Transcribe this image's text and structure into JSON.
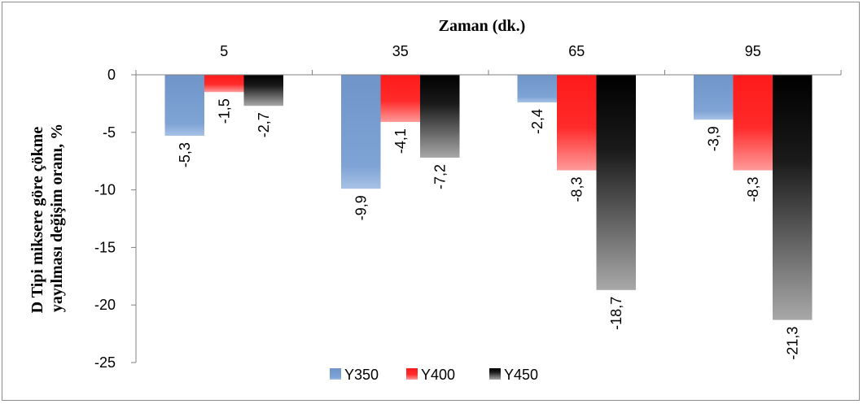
{
  "chart_data": {
    "type": "bar",
    "title": "",
    "xlabel": "Zaman (dk.)",
    "ylabel_lines": [
      "D Tipi miksere göre çökme",
      "yayılması değişim oranı, %"
    ],
    "categories": [
      "5",
      "35",
      "65",
      "95"
    ],
    "ylim": [
      -25,
      0
    ],
    "yticks": [
      "0",
      "-5",
      "-10",
      "-15",
      "-20",
      "-25"
    ],
    "ytick_values": [
      0,
      -5,
      -10,
      -15,
      -20,
      -25
    ],
    "x_axis_position": "top",
    "grid": false,
    "legend_position": "bottom",
    "series": [
      {
        "name": "Y350",
        "values": [
          -5.3,
          -9.9,
          -2.4,
          -3.9
        ],
        "labels": [
          "-5,3",
          "-9,9",
          "-2,4",
          "-3,9"
        ],
        "color": "#7b9fcf"
      },
      {
        "name": "Y400",
        "values": [
          -1.5,
          -4.1,
          -8.3,
          -8.3
        ],
        "labels": [
          "-1,5",
          "-4,1",
          "-8,3",
          "-8,3"
        ],
        "color": "#ff2020"
      },
      {
        "name": "Y450",
        "values": [
          -2.7,
          -7.2,
          -18.7,
          -21.3
        ],
        "labels": [
          "-2,7",
          "-7,2",
          "-18,7",
          "-21,3"
        ],
        "color": "#000000"
      }
    ]
  }
}
